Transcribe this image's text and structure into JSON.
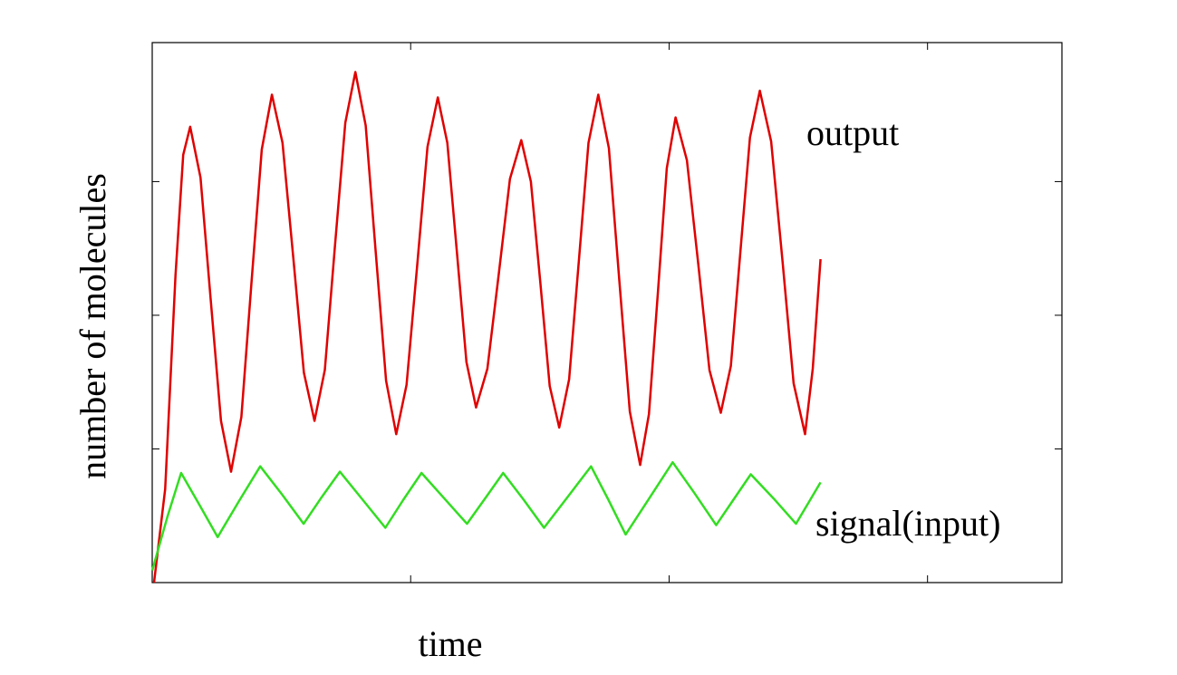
{
  "chart_data": {
    "type": "line",
    "xlabel": "time",
    "ylabel": "number of molecules",
    "annotations": [
      "output",
      "signal(input)"
    ],
    "xlim": [
      0,
      3.52
    ],
    "xticks": [
      1,
      2,
      3
    ],
    "ylim": [
      0,
      4.04
    ],
    "yticks": [
      1,
      2,
      3
    ],
    "series": [
      {
        "color": "#e00000",
        "x": [
          0.007,
          0.05,
          0.09,
          0.12,
          0.147,
          0.187,
          0.226,
          0.266,
          0.305,
          0.345,
          0.384,
          0.424,
          0.463,
          0.504,
          0.546,
          0.587,
          0.628,
          0.668,
          0.707,
          0.747,
          0.786,
          0.826,
          0.865,
          0.905,
          0.944,
          0.984,
          1.025,
          1.065,
          1.105,
          1.142,
          1.179,
          1.216,
          1.253,
          1.297,
          1.341,
          1.384,
          1.428,
          1.465,
          1.502,
          1.538,
          1.575,
          1.613,
          1.651,
          1.688,
          1.726,
          1.767,
          1.807,
          1.848,
          1.888,
          1.922,
          1.957,
          1.991,
          2.025,
          2.069,
          2.113,
          2.156,
          2.2,
          2.239,
          2.276,
          2.313,
          2.351,
          2.395,
          2.439,
          2.482,
          2.526,
          2.556,
          2.586
        ],
        "values": [
          0,
          0.7,
          2.3,
          3.2,
          3.41,
          3.03,
          2.12,
          1.21,
          0.83,
          1.24,
          2.24,
          3.24,
          3.65,
          3.29,
          2.43,
          1.57,
          1.21,
          1.59,
          2.52,
          3.44,
          3.82,
          3.42,
          2.47,
          1.51,
          1.11,
          1.48,
          2.37,
          3.26,
          3.63,
          3.29,
          2.47,
          1.65,
          1.31,
          1.6,
          2.31,
          3.02,
          3.31,
          3.0,
          2.24,
          1.47,
          1.16,
          1.52,
          2.41,
          3.29,
          3.65,
          3.25,
          2.27,
          1.28,
          0.88,
          1.26,
          2.18,
          3.1,
          3.48,
          3.16,
          2.38,
          1.59,
          1.27,
          1.62,
          2.48,
          3.33,
          3.68,
          3.3,
          2.4,
          1.49,
          1.11,
          1.6,
          2.42
        ]
      },
      {
        "color": "#33dd22",
        "x": [
          0,
          0.06,
          0.112,
          0.183,
          0.253,
          0.336,
          0.418,
          0.502,
          0.586,
          0.656,
          0.726,
          0.814,
          0.902,
          0.972,
          1.042,
          1.13,
          1.218,
          1.288,
          1.358,
          1.437,
          1.516,
          1.607,
          1.698,
          1.765,
          1.832,
          1.923,
          2.014,
          2.098,
          2.182,
          2.249,
          2.316,
          2.404,
          2.491,
          2.586
        ],
        "values": [
          0.09,
          0.5,
          0.82,
          0.58,
          0.34,
          0.61,
          0.87,
          0.66,
          0.44,
          0.64,
          0.83,
          0.62,
          0.41,
          0.62,
          0.82,
          0.63,
          0.44,
          0.63,
          0.82,
          0.62,
          0.41,
          0.64,
          0.87,
          0.62,
          0.36,
          0.63,
          0.9,
          0.67,
          0.43,
          0.62,
          0.81,
          0.63,
          0.44,
          0.75
        ]
      }
    ]
  }
}
